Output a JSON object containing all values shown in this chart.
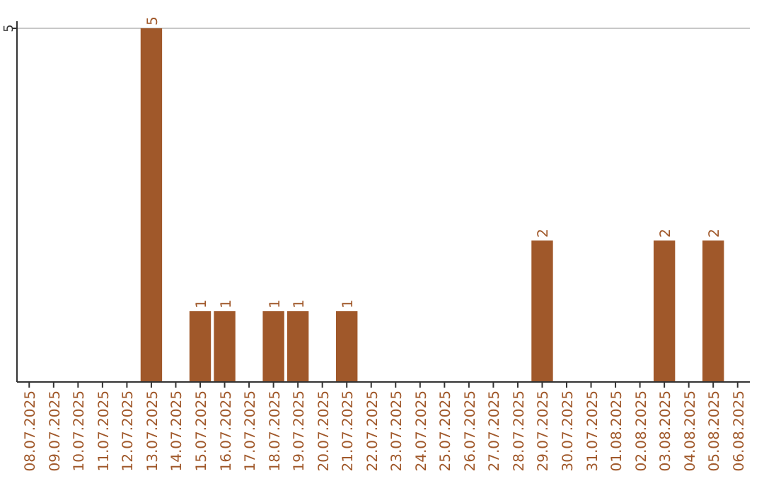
{
  "chart_data": {
    "type": "bar",
    "categories": [
      "08.07.2025",
      "09.07.2025",
      "10.07.2025",
      "11.07.2025",
      "12.07.2025",
      "13.07.2025",
      "14.07.2025",
      "15.07.2025",
      "16.07.2025",
      "17.07.2025",
      "18.07.2025",
      "19.07.2025",
      "20.07.2025",
      "21.07.2025",
      "22.07.2025",
      "23.07.2025",
      "24.07.2025",
      "25.07.2025",
      "26.07.2025",
      "27.07.2025",
      "28.07.2025",
      "29.07.2025",
      "30.07.2025",
      "31.07.2025",
      "01.08.2025",
      "02.08.2025",
      "03.08.2025",
      "04.08.2025",
      "05.08.2025",
      "06.08.2025"
    ],
    "values": [
      0,
      0,
      0,
      0,
      0,
      5,
      0,
      1,
      1,
      0,
      1,
      1,
      0,
      1,
      0,
      0,
      0,
      0,
      0,
      0,
      0,
      2,
      0,
      0,
      0,
      0,
      2,
      0,
      2,
      0
    ],
    "value_labels": [
      null,
      null,
      null,
      null,
      null,
      "5",
      null,
      "1",
      "1",
      null,
      "1",
      "1",
      null,
      "1",
      null,
      null,
      null,
      null,
      null,
      null,
      null,
      "2",
      null,
      null,
      null,
      null,
      "2",
      null,
      "2",
      null
    ],
    "color": "#a0582a",
    "ylim": [
      0,
      5
    ],
    "yticks": [
      5
    ],
    "ref_lines": [
      {
        "axis": "y",
        "value": 5,
        "color": "#c8c8c8"
      }
    ]
  }
}
